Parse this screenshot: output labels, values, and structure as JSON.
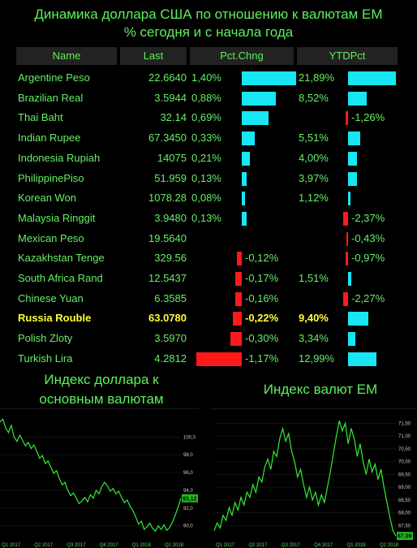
{
  "header": {
    "title_line1": "Динамика доллара США по отношению к валютам ЕМ",
    "title_line2": "% сегодня и с начала года"
  },
  "table": {
    "columns": [
      "Name",
      "Last",
      "Pct.Chng",
      "YTDPct"
    ],
    "rows": [
      {
        "name": "Argentine Peso",
        "last": "22.6640",
        "pct_text": "1,40%",
        "pct": 1.4,
        "ytd_text": "21,89%",
        "ytd": 21.89,
        "highlight": false
      },
      {
        "name": "Brazilian Real",
        "last": "3.5944",
        "pct_text": "0,88%",
        "pct": 0.88,
        "ytd_text": "8,52%",
        "ytd": 8.52,
        "highlight": false
      },
      {
        "name": "Thai Baht",
        "last": "32.14",
        "pct_text": "0,69%",
        "pct": 0.69,
        "ytd_text": "-1,26%",
        "ytd": -1.26,
        "highlight": false
      },
      {
        "name": "Indian Rupee",
        "last": "67.3450",
        "pct_text": "0,33%",
        "pct": 0.33,
        "ytd_text": "5,51%",
        "ytd": 5.51,
        "highlight": false
      },
      {
        "name": "Indonesia Rupiah",
        "last": "14075",
        "pct_text": "0,21%",
        "pct": 0.21,
        "ytd_text": "4,00%",
        "ytd": 4.0,
        "highlight": false
      },
      {
        "name": "PhilippinePiso",
        "last": "51.959",
        "pct_text": "0,13%",
        "pct": 0.13,
        "ytd_text": "3,97%",
        "ytd": 3.97,
        "highlight": false
      },
      {
        "name": "Korean Won",
        "last": "1078.28",
        "pct_text": "0,08%",
        "pct": 0.08,
        "ytd_text": "1,12%",
        "ytd": 1.12,
        "highlight": false
      },
      {
        "name": "Malaysia Ringgit",
        "last": "3.9480",
        "pct_text": "0,13%",
        "pct": 0.13,
        "ytd_text": "-2,37%",
        "ytd": -2.37,
        "highlight": false
      },
      {
        "name": "Mexican Peso",
        "last": "19.5640",
        "pct_text": "",
        "pct": null,
        "ytd_text": "-0,43%",
        "ytd": -0.43,
        "highlight": false
      },
      {
        "name": "Kazakhstan Tenge",
        "last": "329.56",
        "pct_text": "-0,12%",
        "pct": -0.12,
        "ytd_text": "-0,97%",
        "ytd": -0.97,
        "highlight": false
      },
      {
        "name": "South Africa Rand",
        "last": "12.5437",
        "pct_text": "-0,17%",
        "pct": -0.17,
        "ytd_text": "1,51%",
        "ytd": 1.51,
        "highlight": false
      },
      {
        "name": "Chinese Yuan",
        "last": "6.3585",
        "pct_text": "-0,16%",
        "pct": -0.16,
        "ytd_text": "-2,27%",
        "ytd": -2.27,
        "highlight": false
      },
      {
        "name": "Russia Rouble",
        "last": "63.0780",
        "pct_text": "-0,22%",
        "pct": -0.22,
        "ytd_text": "9,40%",
        "ytd": 9.4,
        "highlight": true
      },
      {
        "name": "Polish Zloty",
        "last": "3.5970",
        "pct_text": "-0,30%",
        "pct": -0.3,
        "ytd_text": "3,34%",
        "ytd": 3.34,
        "highlight": false
      },
      {
        "name": "Turkish Lira",
        "last": "4.2812",
        "pct_text": "-1,17%",
        "pct": -1.17,
        "ytd_text": "12,99%",
        "ytd": 12.99,
        "highlight": false
      }
    ]
  },
  "colors": {
    "positive": "#18e6f2",
    "negative": "#ff1a1a",
    "line": "#33ee33",
    "highlight": "#ffff33"
  },
  "chart_data": [
    {
      "type": "line",
      "title": "Индекс доллара к основным валютам",
      "x_ticks": [
        "Q1 2017",
        "Q2 2017",
        "Q3 2017",
        "Q4 2017",
        "Q1 2018",
        "Q2 2018"
      ],
      "y_ticks": [
        90.0,
        92.0,
        94.0,
        96.0,
        98.0,
        100.0
      ],
      "ylim": [
        88.6,
        102.4
      ],
      "last_value_label": "93,12",
      "values": [
        101.7,
        102.0,
        101.0,
        100.5,
        101.3,
        100.0,
        99.5,
        100.2,
        99.6,
        99.0,
        99.4,
        98.7,
        99.1,
        98.4,
        97.6,
        97.9,
        97.0,
        97.3,
        96.6,
        95.9,
        96.2,
        95.3,
        94.6,
        94.9,
        94.0,
        93.4,
        93.7,
        93.1,
        92.5,
        92.8,
        93.2,
        92.7,
        93.5,
        93.1,
        94.0,
        93.6,
        94.4,
        94.9,
        94.5,
        93.9,
        94.2,
        93.6,
        93.9,
        93.2,
        92.6,
        92.9,
        92.2,
        91.7,
        91.0,
        90.2,
        90.5,
        89.6,
        89.9,
        90.3,
        89.7,
        89.4,
        90.0,
        89.6,
        90.1,
        89.5,
        89.8,
        90.4,
        91.2,
        92.1,
        93.1
      ]
    },
    {
      "type": "line",
      "title": "Индекс валют ЕМ",
      "x_ticks": [
        "Q1 2017",
        "Q2 2017",
        "Q3 2017",
        "Q4 2017",
        "Q1 2018",
        "Q2 2018"
      ],
      "y_ticks": [
        67.5,
        68.0,
        68.5,
        69.0,
        69.5,
        70.0,
        70.5,
        71.0,
        71.5
      ],
      "ylim": [
        67.0,
        71.8
      ],
      "last_value_label": "67,09",
      "values": [
        67.3,
        67.6,
        67.4,
        67.9,
        67.7,
        68.2,
        67.9,
        68.4,
        68.1,
        68.6,
        68.3,
        68.8,
        68.6,
        69.1,
        68.8,
        69.4,
        69.2,
        69.8,
        70.1,
        69.7,
        70.4,
        70.2,
        70.9,
        71.3,
        70.8,
        71.1,
        70.4,
        70.0,
        69.4,
        69.7,
        69.1,
        68.6,
        69.0,
        68.5,
        68.8,
        68.3,
        68.7,
        68.4,
        69.0,
        69.6,
        70.3,
        71.0,
        71.6,
        71.2,
        71.5,
        70.7,
        71.3,
        70.9,
        70.2,
        70.7,
        70.0,
        69.5,
        70.1,
        69.6,
        69.9,
        69.3,
        69.7,
        69.0,
        68.4,
        67.8,
        67.3,
        67.09
      ]
    }
  ]
}
